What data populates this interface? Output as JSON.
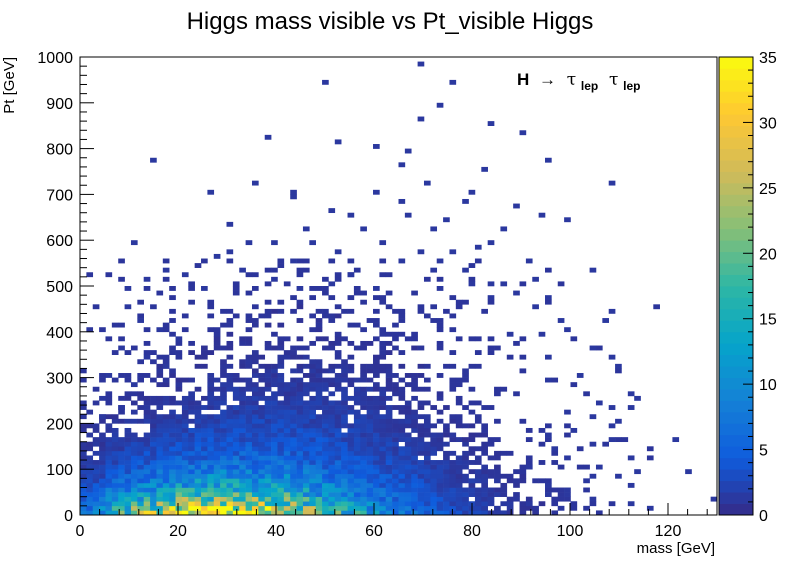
{
  "chart_data": {
    "type": "heatmap",
    "title": "Higgs mass visible vs Pt_visible Higgs",
    "xlabel": "mass [GeV]",
    "ylabel": "Pt [GeV]",
    "xlim": [
      0,
      130
    ],
    "ylim": [
      0,
      1000
    ],
    "zlim": [
      0,
      35
    ],
    "bin_width_x": 1.3,
    "bin_width_y": 10,
    "x_ticks": [
      0,
      20,
      40,
      60,
      80,
      100,
      120
    ],
    "y_ticks": [
      0,
      100,
      200,
      300,
      400,
      500,
      600,
      700,
      800,
      900,
      1000
    ],
    "z_ticks": [
      0,
      5,
      10,
      15,
      20,
      25,
      30,
      35
    ],
    "annotation": {
      "H": "H",
      "arrow": "→",
      "tau1": "τ",
      "sub1": "lep",
      "tau2": "τ",
      "sub2": "lep"
    },
    "palette": [
      "#352a87",
      "#0f5cdd",
      "#1481d6",
      "#06a4ca",
      "#2eb7a4",
      "#87bf77",
      "#d1bb59",
      "#fec832",
      "#f9fb0e"
    ],
    "density_model": {
      "peak_mass": 20,
      "peak_pt": 20,
      "peak_value": 30,
      "shape_note": "dense low-Pt band 0-150 GeV for mass 0-90 GeV, sparse tail to Pt 1000"
    },
    "sparse_points": [
      [
        69,
        985
      ],
      [
        50,
        945
      ],
      [
        76,
        945
      ],
      [
        73,
        895
      ],
      [
        69,
        865
      ],
      [
        84,
        855
      ],
      [
        90,
        830
      ],
      [
        38,
        825
      ],
      [
        53,
        815
      ],
      [
        60,
        800
      ],
      [
        67,
        795
      ],
      [
        15,
        775
      ],
      [
        95,
        775
      ],
      [
        66,
        765
      ],
      [
        82,
        755
      ],
      [
        109,
        725
      ],
      [
        36,
        725
      ],
      [
        71,
        725
      ],
      [
        43,
        705
      ],
      [
        60,
        705
      ],
      [
        80,
        705
      ],
      [
        26,
        705
      ],
      [
        44,
        695
      ],
      [
        65,
        685
      ],
      [
        78,
        685
      ],
      [
        89,
        675
      ],
      [
        51,
        665
      ],
      [
        55,
        655
      ],
      [
        67,
        655
      ],
      [
        75,
        645
      ],
      [
        100,
        645
      ],
      [
        94,
        655
      ],
      [
        30,
        635
      ],
      [
        46,
        625
      ],
      [
        58,
        625
      ],
      [
        72,
        625
      ],
      [
        87,
        625
      ],
      [
        34,
        595
      ],
      [
        39,
        595
      ],
      [
        48,
        595
      ],
      [
        62,
        595
      ],
      [
        81,
        585
      ],
      [
        84,
        595
      ],
      [
        31,
        575
      ],
      [
        53,
        575
      ],
      [
        70,
        575
      ],
      [
        76,
        575
      ],
      [
        28,
        565
      ],
      [
        44,
        555
      ],
      [
        66,
        555
      ],
      [
        91,
        555
      ],
      [
        17,
        535
      ],
      [
        33,
        535
      ],
      [
        55,
        525
      ],
      [
        72,
        535
      ],
      [
        104,
        535
      ],
      [
        93,
        515
      ],
      [
        13,
        515
      ],
      [
        22,
        525
      ],
      [
        40,
        515
      ],
      [
        51,
        505
      ],
      [
        80,
        505
      ],
      [
        87,
        505
      ],
      [
        10,
        495
      ],
      [
        25,
        495
      ],
      [
        45,
        495
      ],
      [
        61,
        495
      ],
      [
        74,
        495
      ],
      [
        84,
        475
      ],
      [
        96,
        475
      ],
      [
        109,
        445
      ],
      [
        107,
        425
      ],
      [
        99,
        405
      ],
      [
        94,
        395
      ],
      [
        104,
        365
      ],
      [
        109,
        345
      ],
      [
        110,
        325
      ],
      [
        102,
        305
      ],
      [
        113,
        265
      ],
      [
        114,
        255
      ],
      [
        106,
        245
      ],
      [
        109,
        235
      ],
      [
        113,
        235
      ],
      [
        100,
        225
      ],
      [
        104,
        215
      ],
      [
        110,
        205
      ],
      [
        109,
        195
      ],
      [
        101,
        185
      ],
      [
        96,
        175
      ],
      [
        108,
        165
      ],
      [
        104,
        155
      ],
      [
        97,
        145
      ],
      [
        112,
        125
      ],
      [
        106,
        105
      ],
      [
        114,
        95
      ],
      [
        110,
        85
      ],
      [
        103,
        75
      ],
      [
        113,
        65
      ],
      [
        100,
        55
      ],
      [
        95,
        45
      ],
      [
        105,
        35
      ],
      [
        112,
        25
      ],
      [
        98,
        15
      ],
      [
        116,
        15
      ],
      [
        88,
        15
      ],
      [
        92,
        25
      ],
      [
        100,
        45
      ],
      [
        96,
        65
      ],
      [
        104,
        85
      ],
      [
        91,
        105
      ],
      [
        100,
        125
      ],
      [
        96,
        295
      ],
      [
        96,
        345
      ],
      [
        88,
        395
      ],
      [
        98,
        425
      ],
      [
        93,
        455
      ],
      [
        89,
        485
      ],
      [
        84,
        505
      ],
      [
        79,
        535
      ],
      [
        73,
        555
      ],
      [
        10,
        455
      ],
      [
        12,
        425
      ],
      [
        16,
        405
      ],
      [
        20,
        385
      ],
      [
        8,
        365
      ],
      [
        14,
        345
      ],
      [
        18,
        325
      ],
      [
        6,
        305
      ],
      [
        11,
        285
      ],
      [
        4,
        255
      ],
      [
        8,
        235
      ],
      [
        4,
        215
      ],
      [
        6,
        195
      ],
      [
        2,
        175
      ],
      [
        5,
        165
      ],
      [
        121,
        165
      ],
      [
        124,
        95
      ],
      [
        129,
        35
      ],
      [
        11,
        595
      ]
    ]
  }
}
